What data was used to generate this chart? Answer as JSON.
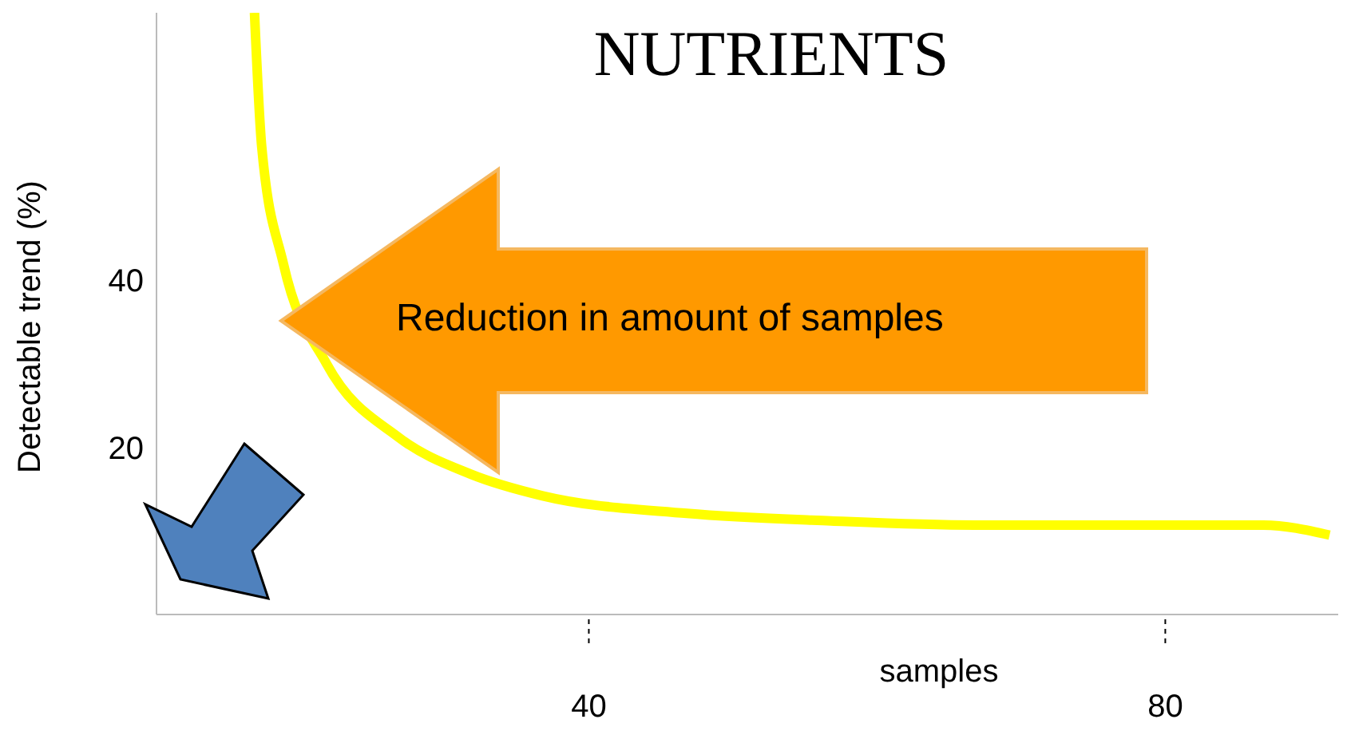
{
  "chart_data": {
    "type": "line",
    "title": "NUTRIENTS",
    "xlabel": "samples",
    "ylabel": "Detectable trend (%)",
    "annotations": [
      "Reduction in amount of samples"
    ],
    "x": [
      16.8,
      17.3,
      18.8,
      21.8,
      26.8,
      31.8,
      36.8,
      46.8,
      56.8,
      66.8,
      76.8,
      86.8,
      91.4
    ],
    "series": [
      {
        "color": "#ffff00",
        "values": [
          72,
          56,
          42,
          30,
          21.2,
          16.8,
          14.2,
          12.1,
          11.2,
          10.7,
          10.7,
          10.7,
          9.5
        ]
      }
    ],
    "xlim": [
      10,
      92
    ],
    "xticks": [
      40,
      80
    ],
    "ylim": [
      0,
      72
    ],
    "yticks": [
      20,
      40
    ],
    "marker": "none",
    "line_style": "solid"
  }
}
